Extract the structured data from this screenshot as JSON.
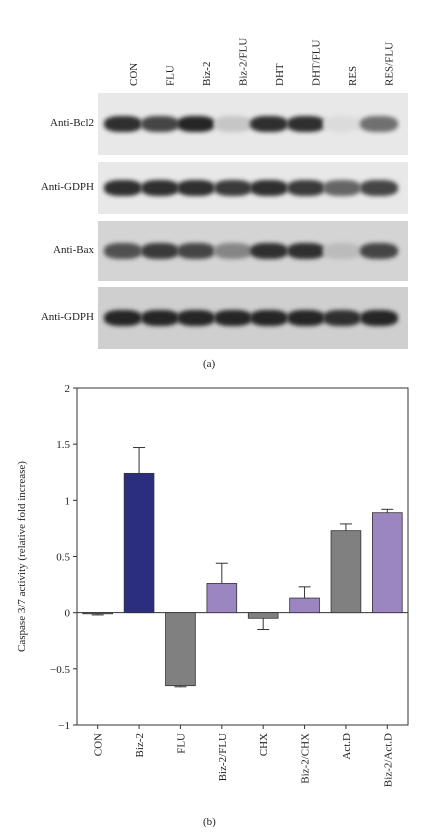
{
  "panel_a": {
    "lanes": [
      "CON",
      "FLU",
      "Biz-2",
      "Biz-2/FLU",
      "DHT",
      "DHT/FLU",
      "RES",
      "RES/FLU"
    ],
    "rows": [
      {
        "label": "Anti-Bcl2",
        "intensity": [
          0.85,
          0.75,
          0.9,
          0.15,
          0.85,
          0.85,
          0.05,
          0.55
        ]
      },
      {
        "label": "Anti-GDPH",
        "intensity": [
          0.85,
          0.85,
          0.85,
          0.8,
          0.85,
          0.8,
          0.6,
          0.75
        ]
      },
      {
        "label": "Anti-Bax",
        "intensity": [
          0.7,
          0.8,
          0.75,
          0.45,
          0.85,
          0.85,
          0.2,
          0.75
        ]
      },
      {
        "label": "Anti-GDPH",
        "intensity": [
          0.9,
          0.9,
          0.9,
          0.9,
          0.9,
          0.9,
          0.85,
          0.9
        ]
      }
    ],
    "caption": "(a)"
  },
  "chart_data": {
    "type": "bar",
    "categories": [
      "CON",
      "Biz-2",
      "FLU",
      "Biz-2/FLU",
      "CHX",
      "Biz-2/CHX",
      "Act.D",
      "Biz-2/Act.D"
    ],
    "values": [
      -0.01,
      1.24,
      -0.65,
      0.26,
      -0.05,
      0.13,
      0.73,
      0.89
    ],
    "errors": [
      0.01,
      0.23,
      0.01,
      0.18,
      0.1,
      0.1,
      0.06,
      0.03
    ],
    "colors": [
      "#808080",
      "#2b2d7f",
      "#808080",
      "#9b86c2",
      "#808080",
      "#9b86c2",
      "#808080",
      "#9b86c2"
    ],
    "ylabel": "Caspase 3/7 activity (relative fold increase)",
    "ylim": [
      -1,
      2
    ],
    "yticks": [
      -1,
      -0.5,
      0,
      0.5,
      1,
      1.5,
      2
    ],
    "ytick_labels": [
      "−1",
      "−0.5",
      "0",
      "0.5",
      "1",
      "1.5",
      "2"
    ],
    "caption": "(b)"
  }
}
